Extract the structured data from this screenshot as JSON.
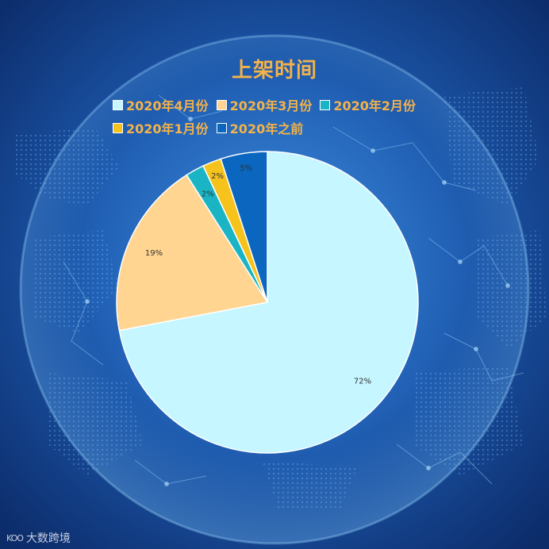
{
  "chart_data": {
    "type": "pie",
    "title": "上架时间",
    "categories": [
      "2020年4月份",
      "2020年3月份",
      "2020年2月份",
      "2020年1月份",
      "2020年之前"
    ],
    "values": [
      72,
      19,
      2,
      2,
      5
    ],
    "labels": [
      "72%",
      "19%",
      "2%",
      "2%",
      "5%"
    ],
    "colors": [
      "#c6f6ff",
      "#ffd591",
      "#1ab4c4",
      "#f6c21c",
      "#0a66bf"
    ],
    "legend_position": "top"
  },
  "colors": {
    "title": "#f3b24a",
    "background_center": "#2f77c8",
    "background_edge": "#0d2f70"
  },
  "watermark": {
    "logo": "KOO",
    "text": "大数跨境"
  }
}
